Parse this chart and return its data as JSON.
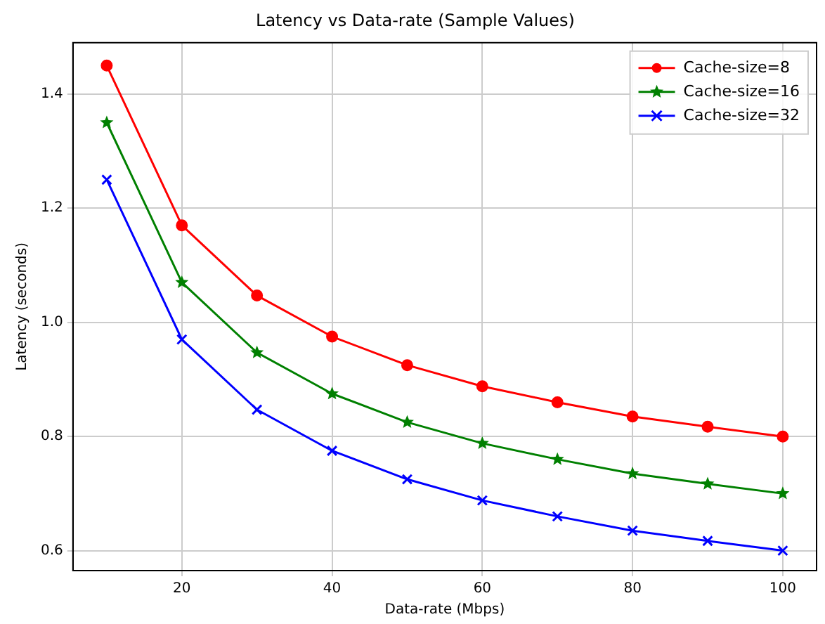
{
  "chart_data": {
    "type": "line",
    "title": "Latency vs Data-rate (Sample Values)",
    "xlabel": "Data-rate (Mbps)",
    "ylabel": "Latency (seconds)",
    "x": [
      10,
      20,
      30,
      40,
      50,
      60,
      70,
      80,
      90,
      100
    ],
    "series": [
      {
        "name": "Cache-size=8",
        "color": "#ff0000",
        "marker": "circle",
        "values": [
          1.45,
          1.17,
          1.047,
          0.975,
          0.925,
          0.888,
          0.86,
          0.835,
          0.817,
          0.8
        ]
      },
      {
        "name": "Cache-size=16",
        "color": "#008000",
        "marker": "star",
        "values": [
          1.35,
          1.07,
          0.947,
          0.875,
          0.825,
          0.788,
          0.76,
          0.735,
          0.717,
          0.7
        ]
      },
      {
        "name": "Cache-size=32",
        "color": "#0000ff",
        "marker": "cross",
        "values": [
          1.25,
          0.97,
          0.847,
          0.775,
          0.725,
          0.688,
          0.66,
          0.635,
          0.617,
          0.6
        ]
      }
    ],
    "xlim": [
      5.5,
      104.5
    ],
    "xticks": [
      20,
      40,
      60,
      80,
      100
    ],
    "ylim": [
      0.565,
      1.49
    ],
    "yticks": [
      {
        "value": 0.6,
        "label": "0.6"
      },
      {
        "value": 0.8,
        "label": "0.8"
      },
      {
        "value": 1,
        "label": "1.0"
      },
      {
        "value": 1.2,
        "label": "1.2"
      },
      {
        "value": 1.4,
        "label": "1.4"
      }
    ],
    "grid": true,
    "legend": "top right",
    "line_style": "solid"
  }
}
